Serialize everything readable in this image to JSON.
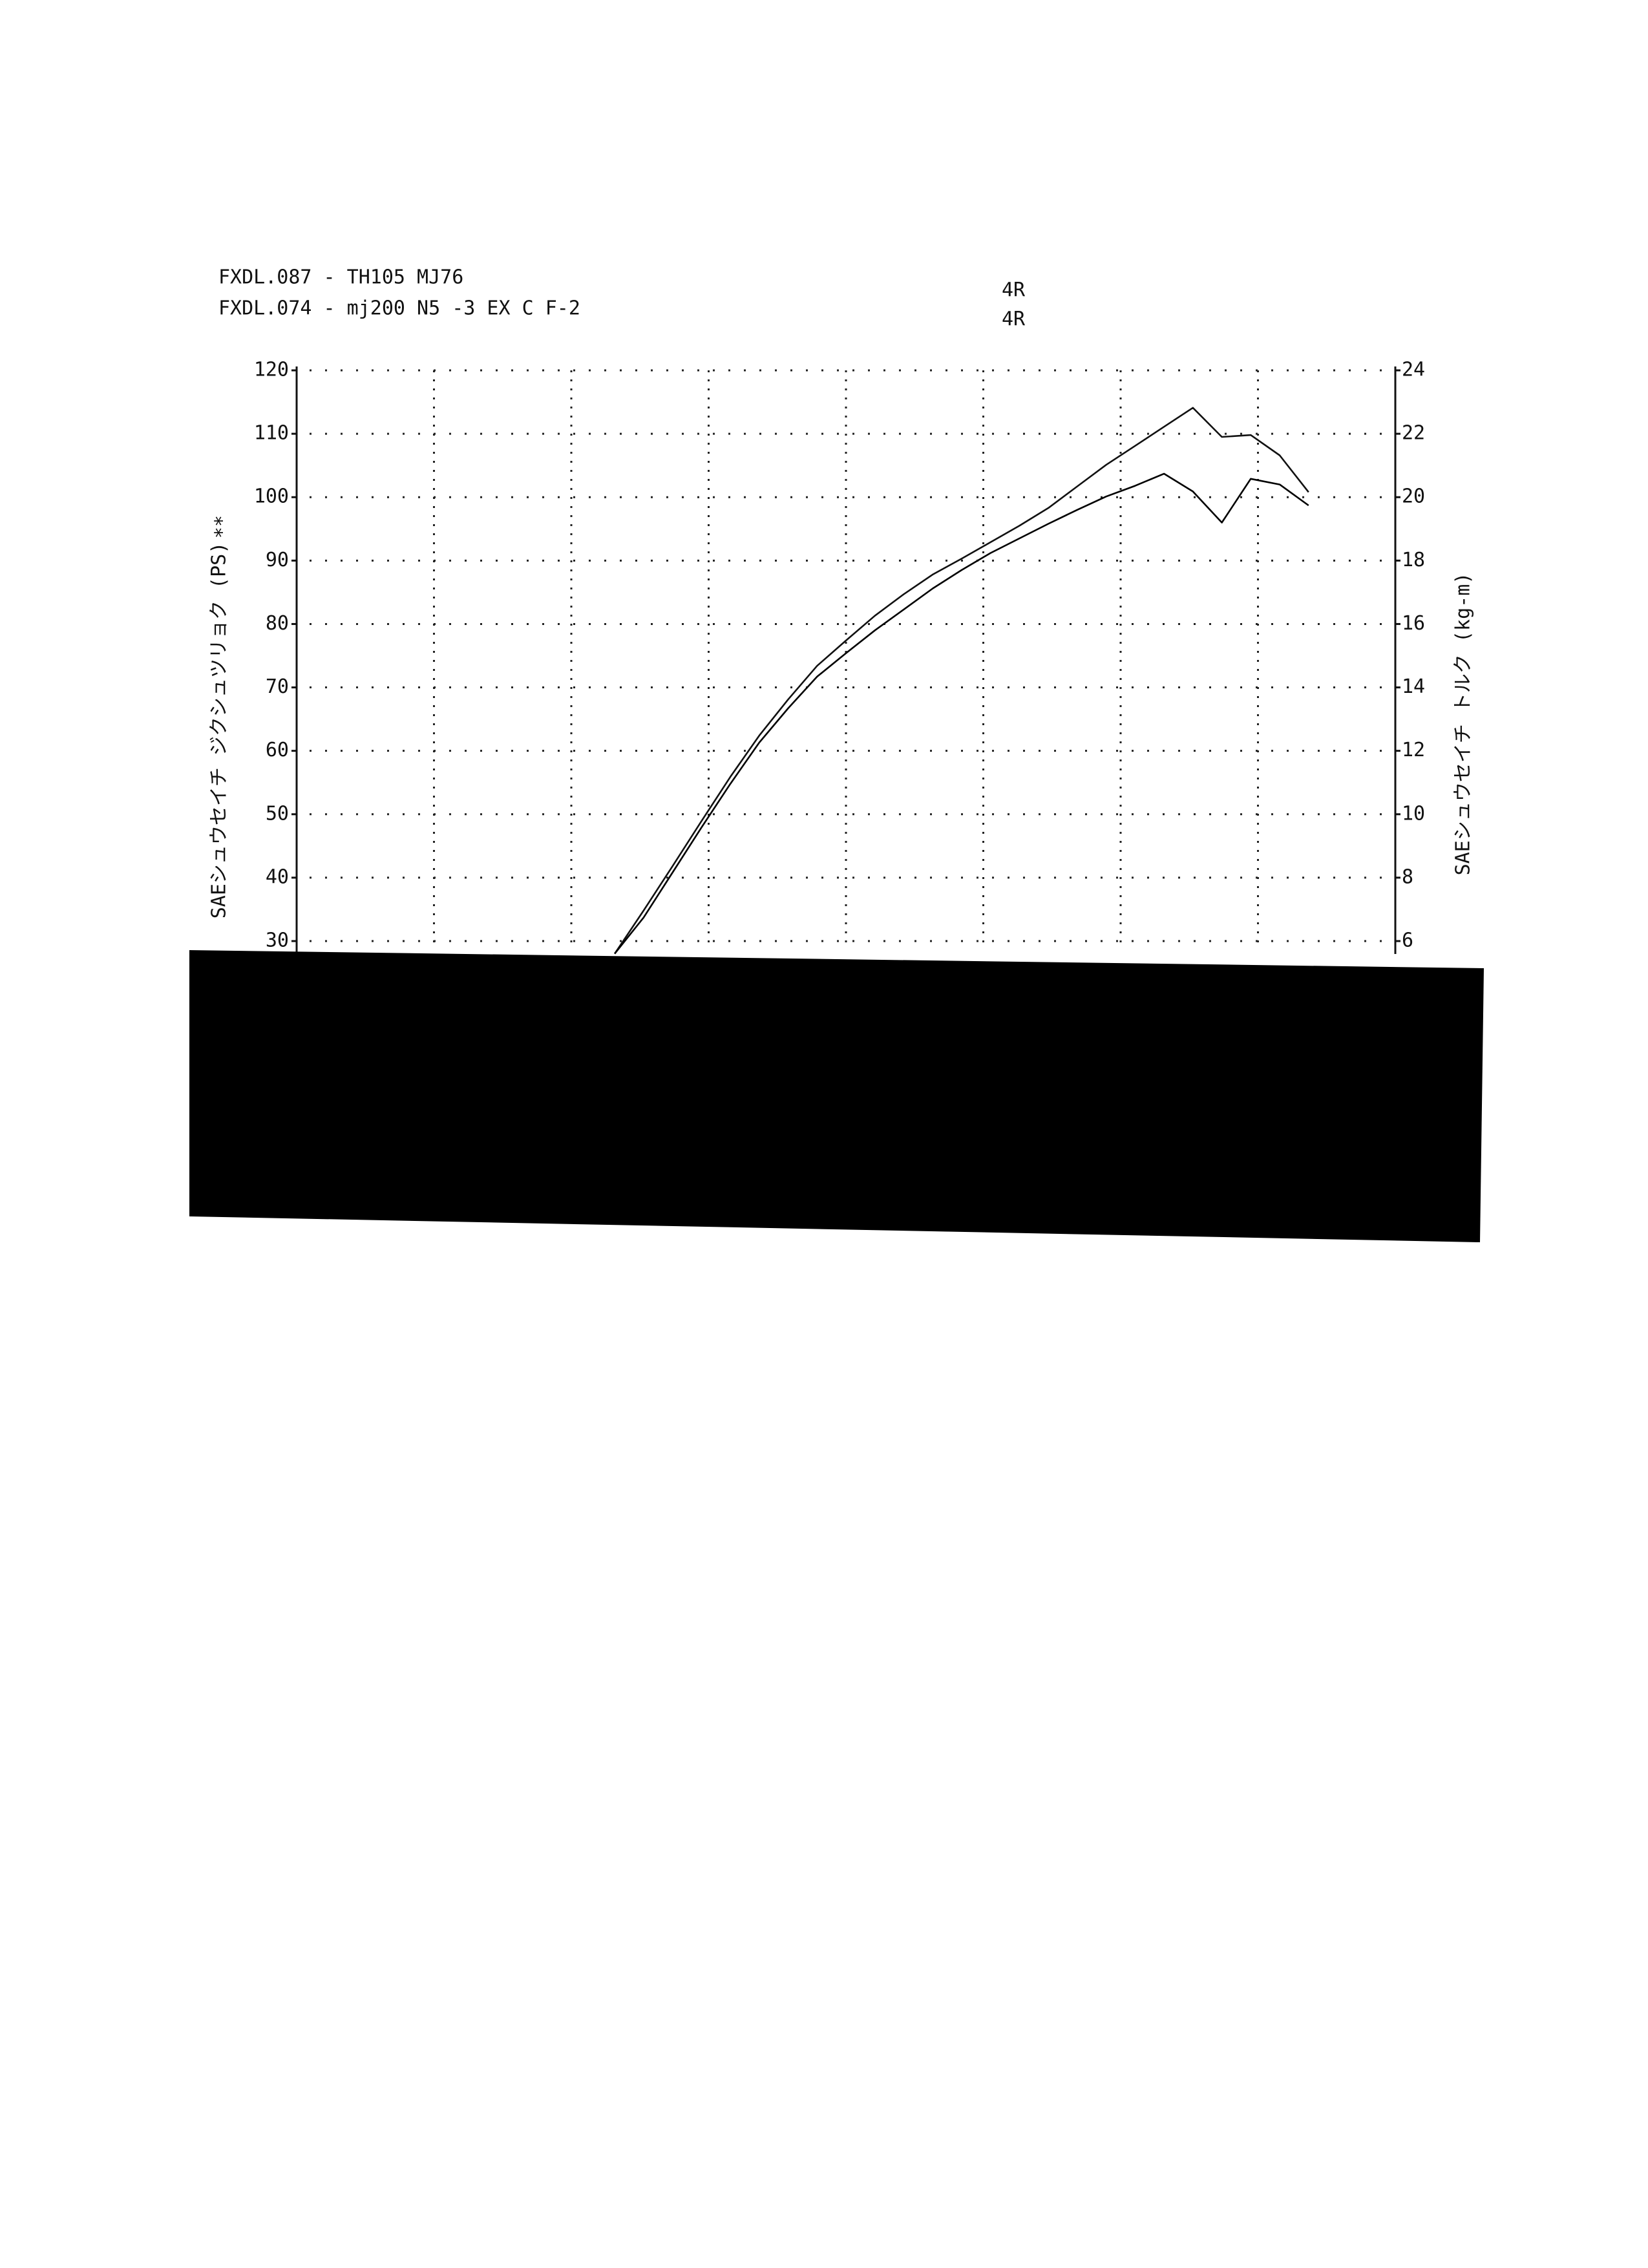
{
  "chart_data": {
    "type": "line",
    "legend_lines": [
      {
        "text": "FXDL.087 -  TH105 MJ76",
        "gear": "4R"
      },
      {
        "text": "FXDL.074 - mj200 N5 -3 EX C F-2",
        "gear": "4R"
      }
    ],
    "y_label": "SAEシュウセイチ ジクシュツリョク (PS)",
    "y_label_mark": "**",
    "y2_label": "SAEシュウセイチ トルク (kg-m)",
    "categories": [
      null,
      null,
      null,
      null,
      null,
      null,
      null,
      null,
      null,
      null,
      null,
      null,
      null,
      null,
      null,
      null,
      null,
      null,
      null,
      null,
      null,
      null,
      null,
      null,
      null,
      null,
      null,
      null,
      null,
      null,
      null,
      null,
      null,
      null,
      null,
      null,
      null,
      null,
      null
    ],
    "series": [
      {
        "color": "#111111",
        "values": [
          null,
          null,
          null,
          null,
          null,
          null,
          null,
          null,
          null,
          null,
          null,
          28,
          34.8,
          41.8,
          48.9,
          55.9,
          62.4,
          68.1,
          73.4,
          77.4,
          81.3,
          84.7,
          87.8,
          90.3,
          92.9,
          95.5,
          98.3,
          101.7,
          105.1,
          108.1,
          111.1,
          114.1,
          109.5,
          109.8,
          106.6,
          100.8,
          null,
          null,
          null
        ]
      },
      {
        "color": "#000000",
        "values": [
          null,
          null,
          null,
          null,
          null,
          null,
          null,
          null,
          null,
          null,
          null,
          28,
          33.7,
          40.8,
          47.9,
          54.8,
          61.3,
          66.7,
          71.7,
          75.4,
          79.0,
          82.3,
          85.6,
          88.5,
          91.2,
          93.5,
          95.8,
          98.0,
          100.1,
          101.8,
          103.7,
          100.9,
          96.0,
          102.9,
          102.0,
          98.7,
          null,
          null,
          null
        ]
      }
    ],
    "ylim": [
      30,
      120
    ],
    "yticks": [
      30,
      40,
      50,
      60,
      70,
      80,
      90,
      100,
      110,
      120
    ],
    "y2lim": [
      6,
      24
    ],
    "y2ticks": [
      6,
      8,
      10,
      12,
      14,
      16,
      18,
      20,
      22,
      24
    ],
    "grid": true
  }
}
